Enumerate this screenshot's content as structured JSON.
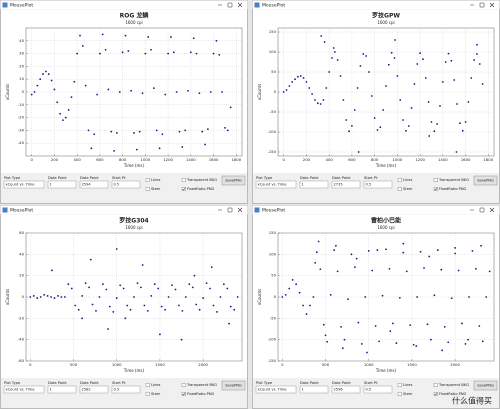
{
  "windows": [
    {
      "title_bar": "MousePlot",
      "chart_data": {
        "type": "scatter",
        "title": "ROG 龙鳞",
        "subtitle": "1600 cpi",
        "x_label": "Time (ms)",
        "y_label": "xCounts",
        "color": "#1c1c8a",
        "grid": true,
        "xlim": [
          -50,
          1850
        ],
        "xticks": [
          0,
          200,
          400,
          600,
          800,
          1000,
          1200,
          1400,
          1600,
          1800
        ],
        "ylim": [
          -50,
          50
        ],
        "yticks": [
          -40,
          -30,
          -20,
          -10,
          0,
          10,
          20,
          30,
          40
        ],
        "x": [
          0,
          25,
          50,
          75,
          100,
          125,
          150,
          175,
          200,
          225,
          250,
          275,
          300,
          325,
          350,
          375,
          400,
          425,
          450,
          475,
          500,
          525,
          550,
          575,
          600,
          625,
          650,
          675,
          700,
          725,
          750,
          775,
          800,
          825,
          850,
          875,
          900,
          925,
          950,
          975,
          1000,
          1025,
          1050,
          1075,
          1100,
          1125,
          1150,
          1175,
          1200,
          1225,
          1250,
          1275,
          1300,
          1325,
          1350,
          1375,
          1400,
          1425,
          1450,
          1475,
          1500,
          1525,
          1550,
          1575,
          1600,
          1625,
          1650,
          1675,
          1700,
          1725,
          1750
        ],
        "y": [
          -2,
          0,
          5,
          10,
          14,
          16,
          14,
          9,
          2,
          -8,
          -17,
          -22,
          -20,
          -14,
          -4,
          8,
          30,
          44,
          36,
          5,
          -30,
          -44,
          -33,
          -2,
          30,
          45,
          33,
          2,
          -31,
          -46,
          -32,
          0,
          31,
          44,
          32,
          1,
          -32,
          -45,
          -31,
          -1,
          30,
          43,
          33,
          3,
          -30,
          -44,
          -33,
          -2,
          30,
          43,
          31,
          0,
          -31,
          -43,
          -30,
          1,
          31,
          42,
          30,
          -1,
          -31,
          -41,
          -29,
          0,
          30,
          40,
          29,
          0,
          -28,
          -30,
          -12
        ]
      },
      "controls": {
        "labels": [
          "Plot Type",
          "Data Point",
          "Data Point",
          "Start Pt"
        ],
        "fields": [
          "xCount vs. Time",
          "1",
          "2594",
          "0.5"
        ],
        "checkboxes": [
          "Lines",
          "Stem",
          "Transparent BKG",
          "FixedRatio PNG"
        ],
        "button": "SavePNG"
      }
    },
    {
      "title_bar": "MousePlot",
      "chart_data": {
        "type": "scatter",
        "title": "罗技GPW",
        "subtitle": "1600 cpi",
        "x_label": "Time (ms)",
        "y_label": "xCounts",
        "color": "#1c1c8a",
        "grid": true,
        "xlim": [
          -50,
          1850
        ],
        "xticks": [
          0,
          200,
          400,
          600,
          800,
          1000,
          1200,
          1400,
          1600,
          1800
        ],
        "ylim": [
          -160,
          160
        ],
        "yticks": [
          -150,
          -100,
          -50,
          0,
          50,
          100,
          150
        ],
        "x": [
          0,
          25,
          50,
          75,
          100,
          125,
          150,
          175,
          200,
          225,
          250,
          275,
          300,
          325,
          350,
          375,
          400,
          425,
          450,
          475,
          500,
          525,
          550,
          575,
          600,
          625,
          650,
          675,
          700,
          725,
          750,
          775,
          800,
          825,
          850,
          875,
          900,
          925,
          950,
          975,
          1000,
          1025,
          1050,
          1075,
          1100,
          1125,
          1150,
          1175,
          1200,
          1225,
          1250,
          1275,
          1300,
          1325,
          1350,
          1375,
          1400,
          1425,
          1450,
          1475,
          1500,
          1525,
          1550,
          1575,
          1600,
          1625,
          1650,
          1675,
          1700,
          1725,
          1750,
          330,
          360,
          440,
          660,
          980,
          1280,
          1520,
          1700
        ],
        "y": [
          0,
          5,
          15,
          25,
          32,
          38,
          40,
          35,
          25,
          10,
          -5,
          -20,
          -28,
          -30,
          -20,
          10,
          50,
          85,
          100,
          80,
          40,
          -20,
          -70,
          -98,
          -85,
          -45,
          10,
          65,
          95,
          90,
          50,
          -10,
          -65,
          -95,
          -88,
          -45,
          15,
          68,
          98,
          85,
          40,
          -20,
          -70,
          -97,
          -85,
          -40,
          20,
          70,
          97,
          82,
          35,
          -25,
          -75,
          -98,
          -80,
          -35,
          25,
          75,
          96,
          78,
          30,
          -30,
          -78,
          -97,
          -75,
          -25,
          35,
          80,
          95,
          70,
          20,
          140,
          125,
          110,
          -150,
          130,
          -110,
          -150,
          118
        ]
      },
      "controls": {
        "labels": [
          "Plot Type",
          "Data Point",
          "Data Point",
          "Start Pt"
        ],
        "fields": [
          "xCount vs. Time",
          "1",
          "2735",
          "0.5"
        ],
        "checkboxes": [
          "Lines",
          "Stem",
          "Transparent BKG",
          "FixedRatio PNG"
        ],
        "button": "SavePNG"
      }
    },
    {
      "title_bar": "MousePlot",
      "chart_data": {
        "type": "scatter",
        "title": "罗技G304",
        "subtitle": "1600 cpi",
        "x_label": "Time (ms)",
        "y_label": "xCounts",
        "color": "#1c1c8a",
        "grid": true,
        "xlim": [
          -50,
          2450
        ],
        "xticks": [
          0,
          500,
          1000,
          1500,
          2000
        ],
        "ylim": [
          -60,
          60
        ],
        "yticks": [
          -60,
          -40,
          -20,
          0,
          20,
          40,
          60
        ],
        "x": [
          0,
          40,
          80,
          120,
          160,
          200,
          240,
          280,
          320,
          360,
          400,
          440,
          480,
          520,
          560,
          600,
          640,
          680,
          720,
          760,
          800,
          840,
          880,
          920,
          960,
          1000,
          1040,
          1080,
          1120,
          1160,
          1200,
          1240,
          1280,
          1320,
          1360,
          1400,
          1440,
          1480,
          1520,
          1560,
          1600,
          1640,
          1680,
          1720,
          1760,
          1800,
          1840,
          1880,
          1920,
          1960,
          2000,
          2040,
          2080,
          2120,
          2160,
          2200,
          2240,
          2280,
          2320,
          2360,
          2400,
          250,
          600,
          700,
          900,
          1000,
          1100,
          1300,
          1500,
          1750,
          1900,
          2100,
          2300
        ],
        "y": [
          0,
          1,
          -1,
          0,
          2,
          1,
          0,
          -1,
          1,
          0,
          0,
          12,
          8,
          -8,
          -12,
          1,
          13,
          9,
          -7,
          -13,
          0,
          12,
          7,
          -9,
          -14,
          -1,
          11,
          8,
          -8,
          -12,
          0,
          13,
          9,
          -8,
          -13,
          1,
          12,
          8,
          -9,
          -12,
          0,
          11,
          7,
          -8,
          -13,
          0,
          12,
          9,
          -7,
          -12,
          -1,
          13,
          8,
          -8,
          -14,
          0,
          12,
          8,
          -9,
          -12,
          0,
          25,
          -20,
          35,
          -30,
          45,
          -20,
          30,
          -35,
          -40,
          20,
          28,
          -25
        ]
      },
      "controls": {
        "labels": [
          "Plot Type",
          "Data Point",
          "Data Point",
          "Start Pt"
        ],
        "fields": [
          "xCount vs. Time",
          "1",
          "2582",
          "0.5"
        ],
        "checkboxes": [
          "Lines",
          "Stem",
          "Transparent BKG",
          "FixedRatio PNG"
        ],
        "button": "SavePNG"
      }
    },
    {
      "title_bar": "MousePlot",
      "chart_data": {
        "type": "scatter",
        "title": "雷柏小巴能",
        "subtitle": "1600 cpi",
        "x_label": "Time (ms)",
        "y_label": "xCounts",
        "color": "#1c1c8a",
        "grid": true,
        "xlim": [
          -50,
          2450
        ],
        "xticks": [
          0,
          500,
          1000,
          1500,
          2000
        ],
        "ylim": [
          -150,
          150
        ],
        "yticks": [
          -150,
          -100,
          -50,
          0,
          50,
          100,
          150
        ],
        "x": [
          0,
          40,
          80,
          120,
          160,
          200,
          240,
          280,
          320,
          360,
          400,
          440,
          480,
          520,
          560,
          600,
          640,
          680,
          720,
          760,
          800,
          840,
          880,
          920,
          960,
          1000,
          1040,
          1080,
          1120,
          1160,
          1200,
          1240,
          1280,
          1320,
          1360,
          1400,
          1440,
          1480,
          1520,
          1560,
          1600,
          1640,
          1680,
          1720,
          1760,
          1800,
          1840,
          1880,
          1920,
          1960,
          2000,
          2040,
          2080,
          2120,
          2160,
          2200,
          2240,
          2280,
          2320,
          2360,
          2400,
          380,
          420,
          500,
          620,
          700,
          860,
          980,
          1100,
          1250,
          1400,
          1550,
          1700,
          1850,
          2000,
          2150,
          2300
        ],
        "y": [
          0,
          5,
          20,
          40,
          30,
          10,
          -20,
          -40,
          -20,
          0,
          105,
          65,
          -65,
          -105,
          5,
          110,
          60,
          -70,
          -100,
          -5,
          100,
          70,
          -60,
          -110,
          0,
          108,
          62,
          -68,
          -104,
          3,
          112,
          66,
          -62,
          -108,
          -2,
          104,
          60,
          -66,
          -112,
          0,
          106,
          68,
          -64,
          -100,
          4,
          110,
          64,
          -70,
          -106,
          -3,
          102,
          62,
          -62,
          -110,
          0,
          108,
          66,
          -68,
          -104,
          0,
          60,
          80,
          130,
          -90,
          120,
          -120,
          90,
          -130,
          110,
          -80,
          125,
          -115,
          95,
          -125,
          115,
          -100,
          120
        ]
      },
      "controls": {
        "labels": [
          "Plot Type",
          "Data Point",
          "Data Point",
          "Start Pt"
        ],
        "fields": [
          "xCount vs. Time",
          "1",
          "2596",
          "0.5"
        ],
        "checkboxes": [
          "Lines",
          "Stem",
          "Transparent BKG",
          "FixedRatio PNG"
        ],
        "button": "SavePNG"
      }
    }
  ],
  "watermark": "什么值得买"
}
